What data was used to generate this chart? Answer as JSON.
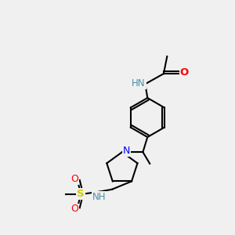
{
  "bg_color": "#f0f0f0",
  "bond_color": "#000000",
  "atom_colors": {
    "N_amide": "#4a8fa8",
    "N_pyrr": "#0000ff",
    "O": "#ff0000",
    "S": "#cccc00",
    "C": "#000000",
    "NH": "#4a8fa8",
    "NH2": "#008000"
  },
  "figsize": [
    3.0,
    3.0
  ],
  "dpi": 100
}
